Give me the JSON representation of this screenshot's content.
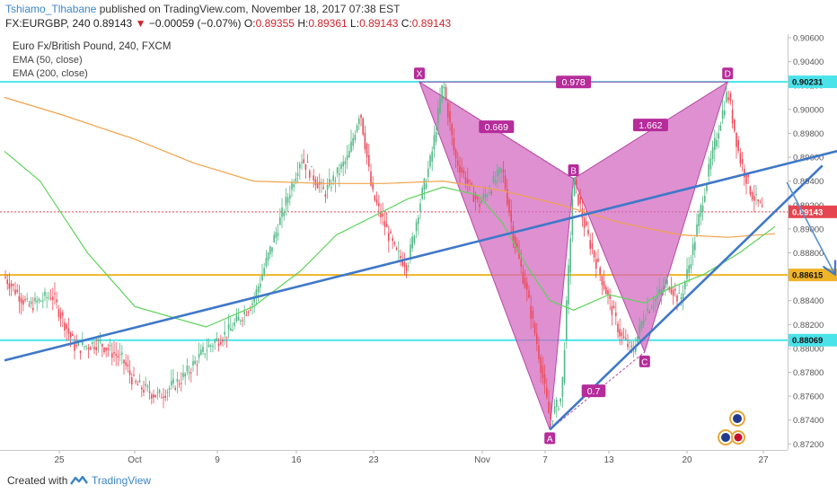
{
  "header": {
    "author": "Tshiamo_Tlhabane",
    "published": "published on TradingView.com, November 18, 2017 07:38 EST",
    "symbol": "FX:EURGBP, 240",
    "last": "0.89143",
    "change_arrow": "▼",
    "change": "−0.00059 (−0.07%)",
    "o_label": "O:",
    "o_value": "0.89355",
    "h_label": "H:",
    "h_value": "0.89361",
    "l_label": "L:",
    "l_value": "0.89143",
    "c_label": "C:",
    "c_value": "0.89143"
  },
  "legend": {
    "title": "Euro Fx/British Pound, 240, FXCM",
    "ema50": "EMA (50, close)",
    "ema200": "EMA (200, close)"
  },
  "footer": {
    "created": "Created with",
    "brand": "TradingView"
  },
  "colors": {
    "pattern_fill": "#d36bc0",
    "pattern_stroke": "#b74aa8",
    "trend_blue": "#3f78c9",
    "level_cyan": "#4ae3ea",
    "level_orange": "#f0b429",
    "ema50": "#5ed35a",
    "ema200": "#f2a24a",
    "candle_up": "#53b987",
    "candle_down": "#eb4d5c",
    "last_price": "#e6454f"
  },
  "chart_data": {
    "type": "candlestick",
    "y_axis": {
      "min": 0.8715,
      "max": 0.9063,
      "position": "right",
      "ticks": [
        "0.90600",
        "0.90400",
        "0.90200",
        "0.90000",
        "0.89800",
        "0.89600",
        "0.89400",
        "0.89200",
        "0.89000",
        "0.88800",
        "0.88600",
        "0.88400",
        "0.88200",
        "0.88000",
        "0.87800",
        "0.87600",
        "0.87400",
        "0.87200"
      ]
    },
    "x_axis": {
      "ticks": [
        "25",
        "Oct",
        "9",
        "16",
        "23",
        "Nov",
        "7",
        "13",
        "20",
        "27"
      ]
    },
    "highlighted_levels": [
      {
        "label": "0.90231",
        "value": 0.90231,
        "color": "cyan"
      },
      {
        "label": "0.88615",
        "value": 0.88615,
        "color": "orange"
      },
      {
        "label": "0.88069",
        "value": 0.88069,
        "color": "cyan"
      },
      {
        "label": "0.89143",
        "value": 0.89143,
        "color": "red",
        "kind": "last-price"
      }
    ],
    "harmonic_pattern": {
      "points": [
        {
          "label": "X",
          "date": "2017-10-20",
          "price": 0.9023
        },
        {
          "label": "A",
          "date": "2017-10-31",
          "price": 0.8732
        },
        {
          "label": "B",
          "date": "2017-11-02",
          "price": 0.8942
        },
        {
          "label": "C",
          "date": "2017-11-08",
          "price": 0.8797
        },
        {
          "label": "D",
          "date": "2017-11-15",
          "price": 0.9023
        }
      ],
      "ratios": [
        {
          "label": "0.669",
          "leg": "XB"
        },
        {
          "label": "0.978",
          "leg": "XD"
        },
        {
          "label": "1.662",
          "leg": "BD"
        },
        {
          "label": "0.7",
          "leg": "AC"
        }
      ]
    },
    "trendlines": [
      {
        "name": "rising-support",
        "from": {
          "date": "2017-09-15",
          "price": 0.879
        },
        "to": {
          "date": "2017-11-29",
          "price": 0.8977
        }
      },
      {
        "name": "lower-channel",
        "from": {
          "date": "2017-10-31",
          "price": 0.8732
        },
        "to": {
          "date": "2017-11-23",
          "price": 0.8953
        }
      }
    ],
    "projection_arrows": [
      {
        "from": {
          "date": "2017-11-20",
          "price": 0.8939
        },
        "to": {
          "date": "2017-11-24",
          "price": 0.8863
        }
      },
      {
        "from": {
          "date": "2017-11-25",
          "price": 0.8859
        },
        "to": {
          "date": "2017-11-29",
          "price": 0.8807
        }
      }
    ],
    "ema50": [
      {
        "date": "2017-09-15",
        "price": 0.8965
      },
      {
        "date": "2017-09-18",
        "price": 0.894
      },
      {
        "date": "2017-09-22",
        "price": 0.888
      },
      {
        "date": "2017-09-26",
        "price": 0.8835
      },
      {
        "date": "2017-10-02",
        "price": 0.8818
      },
      {
        "date": "2017-10-06",
        "price": 0.8835
      },
      {
        "date": "2017-10-10",
        "price": 0.8865
      },
      {
        "date": "2017-10-13",
        "price": 0.8895
      },
      {
        "date": "2017-10-16",
        "price": 0.891
      },
      {
        "date": "2017-10-19",
        "price": 0.8925
      },
      {
        "date": "2017-10-22",
        "price": 0.8935
      },
      {
        "date": "2017-10-25",
        "price": 0.8928
      },
      {
        "date": "2017-10-27",
        "price": 0.8905
      },
      {
        "date": "2017-10-29",
        "price": 0.887
      },
      {
        "date": "2017-10-31",
        "price": 0.884
      },
      {
        "date": "2017-11-02",
        "price": 0.8832
      },
      {
        "date": "2017-11-05",
        "price": 0.8845
      },
      {
        "date": "2017-11-08",
        "price": 0.8838
      },
      {
        "date": "2017-11-10",
        "price": 0.885
      },
      {
        "date": "2017-11-13",
        "price": 0.8862
      },
      {
        "date": "2017-11-16",
        "price": 0.888
      },
      {
        "date": "2017-11-19",
        "price": 0.8902
      }
    ],
    "ema200": [
      {
        "date": "2017-09-15",
        "price": 0.901
      },
      {
        "date": "2017-09-20",
        "price": 0.8995
      },
      {
        "date": "2017-09-26",
        "price": 0.8975
      },
      {
        "date": "2017-10-01",
        "price": 0.8955
      },
      {
        "date": "2017-10-06",
        "price": 0.894
      },
      {
        "date": "2017-10-12",
        "price": 0.8938
      },
      {
        "date": "2017-10-17",
        "price": 0.8938
      },
      {
        "date": "2017-10-22",
        "price": 0.894
      },
      {
        "date": "2017-10-27",
        "price": 0.8932
      },
      {
        "date": "2017-11-01",
        "price": 0.892
      },
      {
        "date": "2017-11-06",
        "price": 0.8905
      },
      {
        "date": "2017-11-11",
        "price": 0.8895
      },
      {
        "date": "2017-11-15",
        "price": 0.8893
      },
      {
        "date": "2017-11-19",
        "price": 0.8896
      }
    ],
    "price_path": [
      {
        "date": "2017-09-15",
        "price": 0.886
      },
      {
        "date": "2017-09-17",
        "price": 0.8835
      },
      {
        "date": "2017-09-19",
        "price": 0.8845
      },
      {
        "date": "2017-09-21",
        "price": 0.88
      },
      {
        "date": "2017-09-23",
        "price": 0.8805
      },
      {
        "date": "2017-09-25",
        "price": 0.879
      },
      {
        "date": "2017-09-26",
        "price": 0.877
      },
      {
        "date": "2017-09-28",
        "price": 0.876
      },
      {
        "date": "2017-09-30",
        "price": 0.8775
      },
      {
        "date": "2017-10-02",
        "price": 0.88
      },
      {
        "date": "2017-10-04",
        "price": 0.8815
      },
      {
        "date": "2017-10-06",
        "price": 0.884
      },
      {
        "date": "2017-10-08",
        "price": 0.89
      },
      {
        "date": "2017-10-10",
        "price": 0.896
      },
      {
        "date": "2017-10-12",
        "price": 0.893
      },
      {
        "date": "2017-10-14",
        "price": 0.896
      },
      {
        "date": "2017-10-15",
        "price": 0.9
      },
      {
        "date": "2017-10-16",
        "price": 0.893
      },
      {
        "date": "2017-10-18",
        "price": 0.888
      },
      {
        "date": "2017-10-19",
        "price": 0.887
      },
      {
        "date": "2017-10-20",
        "price": 0.892
      },
      {
        "date": "2017-10-21",
        "price": 0.896
      },
      {
        "date": "2017-10-22",
        "price": 0.9023
      },
      {
        "date": "2017-10-23",
        "price": 0.896
      },
      {
        "date": "2017-10-25",
        "price": 0.892
      },
      {
        "date": "2017-10-27",
        "price": 0.895
      },
      {
        "date": "2017-10-28",
        "price": 0.889
      },
      {
        "date": "2017-10-29",
        "price": 0.885
      },
      {
        "date": "2017-10-30",
        "price": 0.88
      },
      {
        "date": "2017-10-31",
        "price": 0.874
      },
      {
        "date": "2017-11-01",
        "price": 0.876
      },
      {
        "date": "2017-11-02",
        "price": 0.8942
      },
      {
        "date": "2017-11-03",
        "price": 0.89
      },
      {
        "date": "2017-11-05",
        "price": 0.884
      },
      {
        "date": "2017-11-06",
        "price": 0.881
      },
      {
        "date": "2017-11-07",
        "price": 0.8797
      },
      {
        "date": "2017-11-08",
        "price": 0.883
      },
      {
        "date": "2017-11-10",
        "price": 0.8855
      },
      {
        "date": "2017-11-11",
        "price": 0.884
      },
      {
        "date": "2017-11-12",
        "price": 0.888
      },
      {
        "date": "2017-11-13",
        "price": 0.893
      },
      {
        "date": "2017-11-14",
        "price": 0.8975
      },
      {
        "date": "2017-11-15",
        "price": 0.9015
      },
      {
        "date": "2017-11-16",
        "price": 0.896
      },
      {
        "date": "2017-11-17",
        "price": 0.893
      },
      {
        "date": "2017-11-18",
        "price": 0.8914
      }
    ]
  }
}
